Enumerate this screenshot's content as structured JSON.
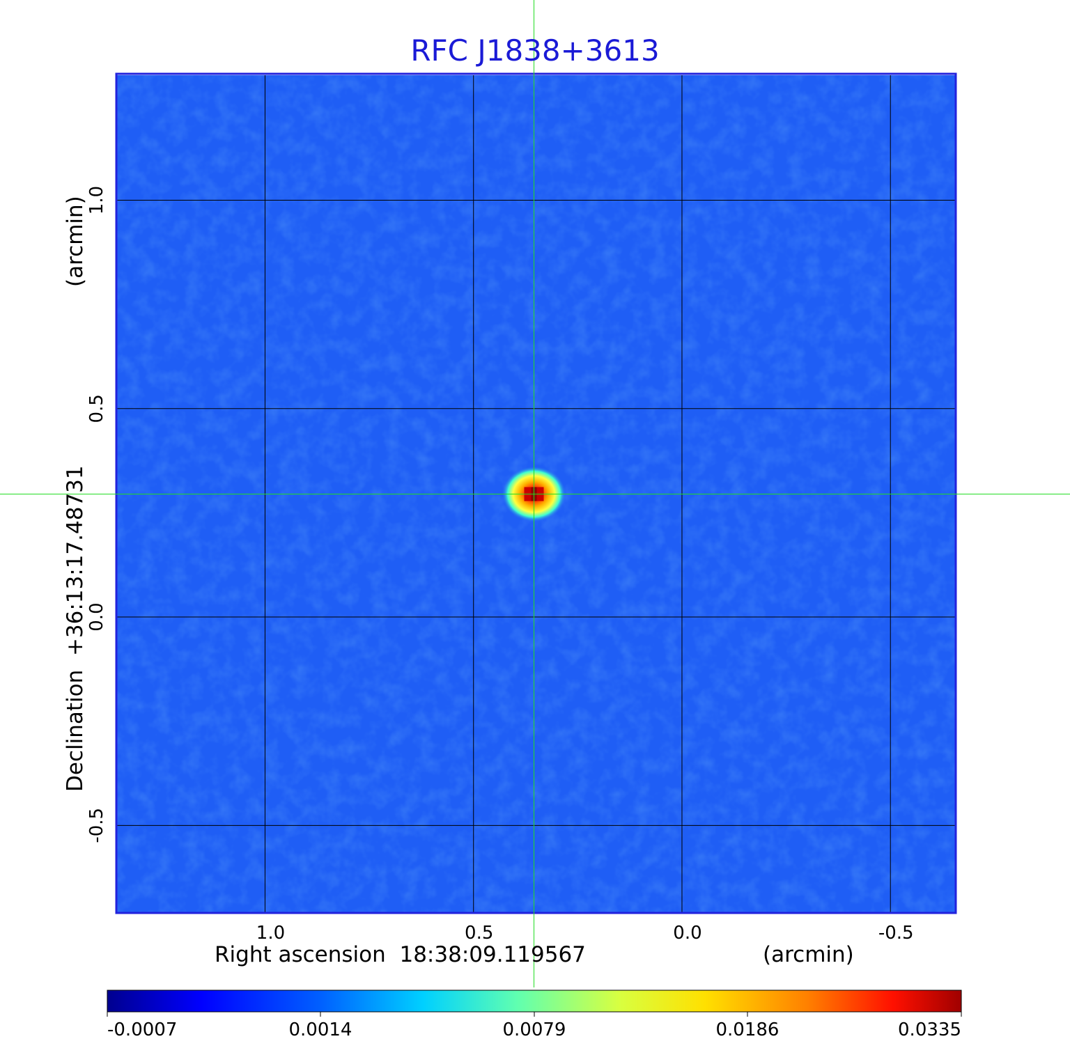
{
  "chart_data": {
    "type": "heatmap",
    "title": "RFC J1838+3613",
    "xlabel": "Right ascension  18:38:09.119567",
    "xunit": "(arcmin)",
    "ylabel": "Declination  +36:13:17.48731",
    "yunit": "(arcmin)",
    "x_ticks": [
      "1.0",
      "0.5",
      "0.0",
      "-0.5"
    ],
    "x_tick_values": [
      1.0,
      0.5,
      0.0,
      -0.5
    ],
    "y_ticks": [
      "1.0",
      "0.5",
      "0.0",
      "-0.5"
    ],
    "y_tick_values": [
      1.0,
      0.5,
      0.0,
      -0.5
    ],
    "xlim": [
      1.355,
      -0.655
    ],
    "ylim": [
      -0.71,
      1.3
    ],
    "x_reversed": true,
    "grid": true,
    "crosshair": {
      "x": 0.355,
      "y": 0.295
    },
    "source_peak": {
      "x": 0.355,
      "y": 0.295,
      "value": 0.0335
    },
    "colorbar_ticks": [
      "-0.0007",
      "0.0014",
      "0.0079",
      "0.0186",
      "0.0335"
    ],
    "colorbar_values": [
      -0.0007,
      0.0014,
      0.0079,
      0.0186,
      0.0335
    ],
    "colormap": "jet",
    "colors": {
      "title": "#1a1ad6",
      "frame": "#2222dd",
      "grid": "#000000",
      "crosshair": "#22dd22",
      "background_field": "#1f5ef5"
    }
  }
}
